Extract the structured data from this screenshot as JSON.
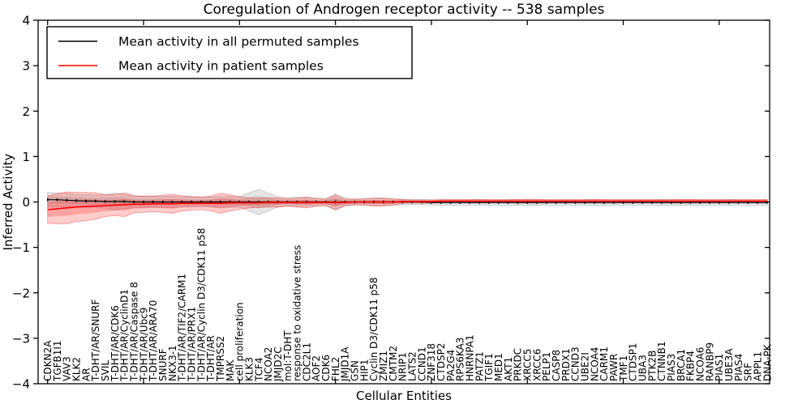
{
  "chart_data": {
    "type": "line",
    "title": "Coregulation of Androgen receptor activity -- 538 samples",
    "xlabel": "Cellular Entities",
    "ylabel": "Inferred Activity",
    "ylim": [
      -4,
      4
    ],
    "ytick_labels": [
      "4",
      "3",
      "2",
      "1",
      "0",
      "−1",
      "−2",
      "−3",
      "−4"
    ],
    "grid": false,
    "legend_position": "upper left",
    "legend": [
      {
        "label": "Mean activity in all permuted samples",
        "color": "#000000"
      },
      {
        "label": "Mean activity in patient samples",
        "color": "#ff0000"
      }
    ],
    "categories": [
      "CDKN2A",
      "TGFB1I1",
      "VAV3",
      "KLK2",
      "AR",
      "T-DHT/AR/SNURF",
      "SVIL",
      "T-DHT/AR/CDK6",
      "T-DHT/AR/CyclinD1",
      "T-DHT/AR/Caspase 8",
      "T-DHT/AR/Ubc9",
      "T-DHT/AR/ARA70",
      "SNURF",
      "NKX3-1",
      "T-DHT/AR/TIF2/CARM1",
      "T-DHT/AR/PRX1",
      "T-DHT/AR/Cyclin D3/CDK11 p58",
      "T-DHT/AR",
      "TMPRSS2",
      "MAK",
      "cell proliferation",
      "KLK3",
      "TCF4",
      "NCOA2",
      "JMJD2C",
      "mol:T-DHT",
      "response to oxidative stress",
      "CDC2L1",
      "AOF2",
      "CDK6",
      "FHL2",
      "JMJD1A",
      "GSN",
      "HIP1",
      "Cyclin D3/CDK11 p58",
      "ZMIZ1",
      "CMTM2",
      "NRIP1",
      "LATS2",
      "CCND1",
      "ZNF318",
      "CTDSP2",
      "PA2G4",
      "RPS6KA3",
      "HNRNPA1",
      "PATZ1",
      "TGIF1",
      "MED1",
      "AKT1",
      "PRKDC",
      "XRCC5",
      "XRCC6",
      "PELP1",
      "CASP8",
      "PRDX1",
      "CCND3",
      "UBE2I",
      "NCOA4",
      "CARM1",
      "PAWR",
      "TMF1",
      "CTDSP1",
      "UBA3",
      "PTK2B",
      "CTNNB1",
      "PIAS3",
      "BRCA1",
      "FKBP4",
      "NCOA6",
      "RANBP9",
      "PIAS1",
      "UBE3A",
      "PIAS4",
      "SRF",
      "APPL1",
      "DNA-PK"
    ],
    "series": [
      {
        "name": "Mean activity in all permuted samples",
        "color": "#000000",
        "fill": "rgba(0,0,0,0.10)",
        "edge": "rgba(0,0,0,0.18)",
        "values": [
          0.05,
          0.05,
          0.04,
          0.03,
          0.02,
          0.02,
          0.01,
          0.01,
          0.01,
          0,
          0,
          0,
          0,
          0,
          0,
          0,
          0,
          0,
          0,
          0,
          0,
          0,
          0,
          0,
          0,
          0,
          0,
          0,
          0,
          0,
          0,
          0,
          0,
          0,
          0,
          0,
          0,
          0,
          0,
          0,
          -0.01,
          -0.01,
          -0.01,
          -0.01,
          -0.01,
          -0.01,
          -0.01,
          -0.01,
          -0.01,
          -0.01,
          -0.01,
          -0.01,
          -0.01,
          -0.01,
          -0.01,
          -0.01,
          -0.01,
          -0.01,
          -0.01,
          -0.01,
          -0.01,
          -0.01,
          -0.01,
          -0.01,
          -0.01,
          -0.01,
          -0.01,
          -0.01,
          -0.01,
          -0.01,
          -0.01,
          -0.01,
          -0.01,
          -0.01,
          -0.01,
          -0.01
        ],
        "band_halfwidth": [
          0.16,
          0.15,
          0.15,
          0.14,
          0.14,
          0.13,
          0.15,
          0.19,
          0.16,
          0.13,
          0.12,
          0.12,
          0.12,
          0.13,
          0.11,
          0.11,
          0.1,
          0.11,
          0.12,
          0.12,
          0.11,
          0.2,
          0.28,
          0.2,
          0.11,
          0.1,
          0.1,
          0.1,
          0.09,
          0.08,
          0.18,
          0.09,
          0.07,
          0.07,
          0.08,
          0.08,
          0.07,
          0.065,
          0.06,
          0.06,
          0.06,
          0.06,
          0.06,
          0.06,
          0.06,
          0.06,
          0.06,
          0.06,
          0.06,
          0.065,
          0.07,
          0.065,
          0.06,
          0.06,
          0.06,
          0.06,
          0.06,
          0.07,
          0.065,
          0.06,
          0.06,
          0.06,
          0.06,
          0.06,
          0.065,
          0.07,
          0.07,
          0.065,
          0.06,
          0.06,
          0.06,
          0.065,
          0.06,
          0.06,
          0.06,
          0.065
        ]
      },
      {
        "name": "Mean activity in patient samples",
        "color": "#ff0000",
        "fill": "rgba(255,0,0,0.20)",
        "edge": "rgba(255,0,0,0.40)",
        "values": [
          -0.17,
          -0.15,
          -0.13,
          -0.11,
          -0.1,
          -0.09,
          -0.08,
          -0.07,
          -0.06,
          -0.05,
          -0.05,
          -0.04,
          -0.04,
          -0.04,
          -0.03,
          -0.03,
          -0.03,
          -0.03,
          -0.03,
          -0.02,
          -0.02,
          -0.02,
          -0.02,
          -0.01,
          -0.01,
          -0.01,
          -0.01,
          -0.01,
          -0.01,
          -0.01,
          -0.01,
          -0.01,
          0,
          0,
          0,
          0,
          0,
          0.01,
          0.01,
          0.01,
          0.01,
          0.02,
          0.02,
          0.02,
          0.02,
          0.02,
          0.02,
          0.02,
          0.02,
          0.02,
          0.02,
          0.02,
          0.02,
          0.02,
          0.02,
          0.02,
          0.02,
          0.02,
          0.02,
          0.02,
          0.02,
          0.02,
          0.02,
          0.02,
          0.02,
          0.02,
          0.02,
          0.02,
          0.02,
          0.02,
          0.02,
          0.02,
          0.02,
          0.02,
          0.02,
          0.02
        ],
        "band_halfwidth": [
          0.3,
          0.33,
          0.35,
          0.32,
          0.31,
          0.29,
          0.24,
          0.23,
          0.26,
          0.19,
          0.18,
          0.17,
          0.19,
          0.21,
          0.17,
          0.15,
          0.14,
          0.16,
          0.22,
          0.18,
          0.14,
          0.11,
          0.1,
          0.1,
          0.1,
          0.08,
          0.1,
          0.12,
          0.08,
          0.07,
          0.16,
          0.07,
          0.06,
          0.07,
          0.09,
          0.09,
          0.07,
          0.04,
          0.035,
          0.035,
          0.03,
          0.03,
          0.03,
          0.03,
          0.03,
          0.035,
          0.03,
          0.03,
          0.03,
          0.035,
          0.04,
          0.035,
          0.03,
          0.03,
          0.03,
          0.03,
          0.03,
          0.035,
          0.03,
          0.03,
          0.03,
          0.03,
          0.03,
          0.03,
          0.03,
          0.03,
          0.035,
          0.035,
          0.03,
          0.03,
          0.03,
          0.03,
          0.03,
          0.03,
          0.03,
          0.03
        ]
      }
    ]
  }
}
